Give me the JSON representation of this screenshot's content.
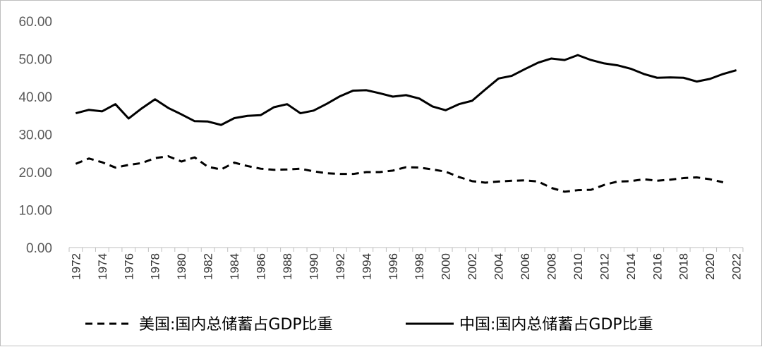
{
  "chart_data": {
    "type": "line",
    "title": "",
    "xlabel": "",
    "ylabel": "",
    "ylim": [
      0,
      60
    ],
    "yticks": [
      "0.00",
      "10.00",
      "20.00",
      "30.00",
      "40.00",
      "50.00",
      "60.00"
    ],
    "x": [
      1972,
      1973,
      1974,
      1975,
      1976,
      1977,
      1978,
      1979,
      1980,
      1981,
      1982,
      1983,
      1984,
      1985,
      1986,
      1987,
      1988,
      1989,
      1990,
      1991,
      1992,
      1993,
      1994,
      1995,
      1996,
      1997,
      1998,
      1999,
      2000,
      2001,
      2002,
      2003,
      2004,
      2005,
      2006,
      2007,
      2008,
      2009,
      2010,
      2011,
      2012,
      2013,
      2014,
      2015,
      2016,
      2017,
      2018,
      2019,
      2020,
      2021,
      2022
    ],
    "xtick_labels": [
      "1972",
      "1974",
      "1976",
      "1978",
      "1980",
      "1982",
      "1984",
      "1986",
      "1988",
      "1990",
      "1992",
      "1994",
      "1996",
      "1998",
      "2000",
      "2002",
      "2004",
      "2006",
      "2008",
      "2010",
      "2012",
      "2014",
      "2016",
      "2018",
      "2020",
      "2022"
    ],
    "grid": false,
    "legend_position": "bottom",
    "series": [
      {
        "name": "美国:国内总储蓄占GDP比重",
        "style": "dashed",
        "color": "#000000",
        "values": [
          22.2,
          23.6,
          22.6,
          21.2,
          21.9,
          22.4,
          23.7,
          24.2,
          22.8,
          23.9,
          21.4,
          20.7,
          22.5,
          21.6,
          20.9,
          20.6,
          20.7,
          20.9,
          20.2,
          19.7,
          19.5,
          19.5,
          20.0,
          20.0,
          20.4,
          21.3,
          21.2,
          20.7,
          20.1,
          18.7,
          17.6,
          17.2,
          17.5,
          17.7,
          17.8,
          17.5,
          15.8,
          14.8,
          15.2,
          15.3,
          16.6,
          17.5,
          17.6,
          18.1,
          17.7,
          18.0,
          18.4,
          18.6,
          18.1,
          17.3,
          null
        ]
      },
      {
        "name": "中国:国内总储蓄占GDP比重",
        "style": "solid",
        "color": "#000000",
        "values": [
          35.6,
          36.5,
          36.1,
          38.0,
          34.2,
          36.9,
          39.3,
          37.0,
          35.3,
          33.5,
          33.4,
          32.5,
          34.3,
          34.9,
          35.1,
          37.2,
          38.0,
          35.6,
          36.3,
          38.1,
          40.1,
          41.6,
          41.7,
          40.9,
          40.0,
          40.4,
          39.5,
          37.4,
          36.4,
          38.0,
          38.9,
          41.9,
          44.8,
          45.5,
          47.3,
          49.0,
          50.1,
          49.7,
          51.0,
          49.7,
          48.8,
          48.3,
          47.4,
          46.0,
          45.0,
          45.1,
          45.0,
          44.0,
          44.7,
          46.0,
          47.0
        ]
      }
    ]
  }
}
